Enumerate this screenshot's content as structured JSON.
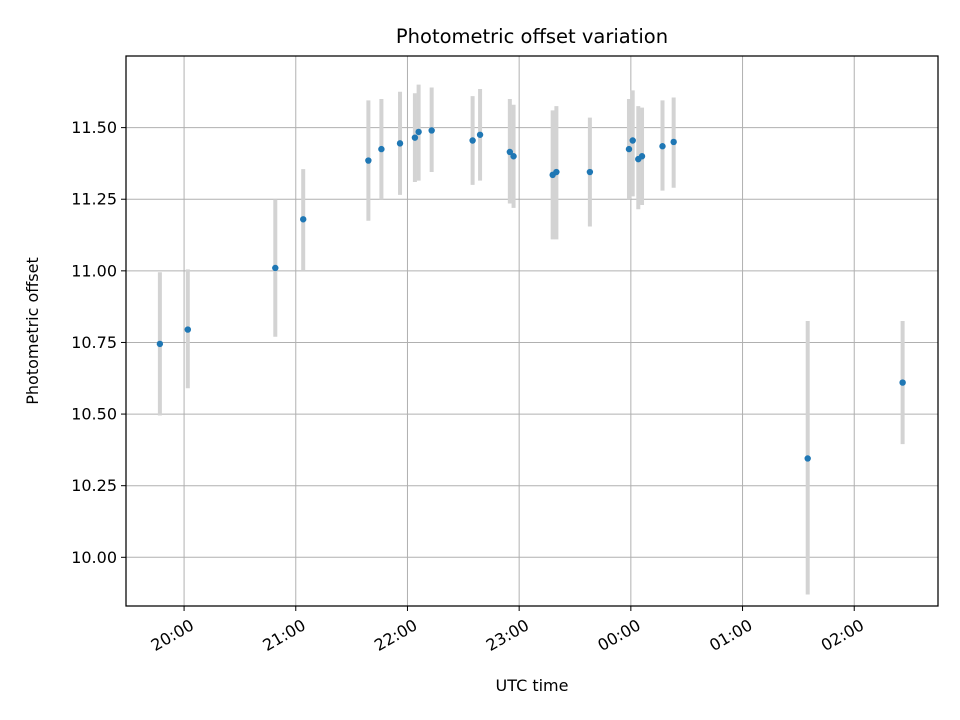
{
  "chart_data": {
    "type": "scatter",
    "title": "Photometric offset variation",
    "xlabel": "UTC time",
    "ylabel": "Photometric offset",
    "x_tick_labels": [
      "20:00",
      "21:00",
      "22:00",
      "23:00",
      "00:00",
      "01:00",
      "02:00"
    ],
    "y_tick_labels": [
      "10.00",
      "10.25",
      "10.50",
      "10.75",
      "11.00",
      "11.25",
      "11.50"
    ],
    "y_ticks": [
      10.0,
      10.25,
      10.5,
      10.75,
      11.0,
      11.25,
      11.5
    ],
    "x_ticks_hours": [
      20,
      21,
      22,
      23,
      24,
      25,
      26
    ],
    "xlim_hours": [
      19.48,
      26.75
    ],
    "ylim": [
      9.83,
      11.75
    ],
    "grid": true,
    "series": [
      {
        "marker_color": "#1f77b4",
        "errorbar_color": "#d3d3d3",
        "points": [
          {
            "time": "19:47",
            "y": 10.745,
            "ylow": 10.495,
            "yhigh": 10.995
          },
          {
            "time": "20:02",
            "y": 10.795,
            "ylow": 10.59,
            "yhigh": 11.005
          },
          {
            "time": "20:49",
            "y": 11.01,
            "ylow": 10.77,
            "yhigh": 11.25
          },
          {
            "time": "21:04",
            "y": 11.18,
            "ylow": 11.0,
            "yhigh": 11.355
          },
          {
            "time": "21:39",
            "y": 11.385,
            "ylow": 11.175,
            "yhigh": 11.595
          },
          {
            "time": "21:46",
            "y": 11.425,
            "ylow": 11.25,
            "yhigh": 11.6
          },
          {
            "time": "21:56",
            "y": 11.445,
            "ylow": 11.265,
            "yhigh": 11.625
          },
          {
            "time": "22:04",
            "y": 11.465,
            "ylow": 11.31,
            "yhigh": 11.62
          },
          {
            "time": "22:06",
            "y": 11.485,
            "ylow": 11.315,
            "yhigh": 11.65
          },
          {
            "time": "22:13",
            "y": 11.49,
            "ylow": 11.345,
            "yhigh": 11.64
          },
          {
            "time": "22:35",
            "y": 11.455,
            "ylow": 11.3,
            "yhigh": 11.61
          },
          {
            "time": "22:39",
            "y": 11.475,
            "ylow": 11.315,
            "yhigh": 11.635
          },
          {
            "time": "22:55",
            "y": 11.415,
            "ylow": 11.235,
            "yhigh": 11.6
          },
          {
            "time": "22:57",
            "y": 11.4,
            "ylow": 11.22,
            "yhigh": 11.58
          },
          {
            "time": "23:18",
            "y": 11.335,
            "ylow": 11.11,
            "yhigh": 11.56
          },
          {
            "time": "23:20",
            "y": 11.345,
            "ylow": 11.11,
            "yhigh": 11.575
          },
          {
            "time": "23:38",
            "y": 11.345,
            "ylow": 11.155,
            "yhigh": 11.535
          },
          {
            "time": "23:59",
            "y": 11.425,
            "ylow": 11.25,
            "yhigh": 11.6
          },
          {
            "time": "00:01",
            "y": 11.455,
            "ylow": 11.26,
            "yhigh": 11.63
          },
          {
            "time": "00:04",
            "y": 11.39,
            "ylow": 11.215,
            "yhigh": 11.575
          },
          {
            "time": "00:06",
            "y": 11.4,
            "ylow": 11.23,
            "yhigh": 11.57
          },
          {
            "time": "00:17",
            "y": 11.435,
            "ylow": 11.28,
            "yhigh": 11.595
          },
          {
            "time": "00:23",
            "y": 11.45,
            "ylow": 11.29,
            "yhigh": 11.605
          },
          {
            "time": "01:35",
            "y": 10.345,
            "ylow": 9.87,
            "yhigh": 10.825
          },
          {
            "time": "02:26",
            "y": 10.61,
            "ylow": 10.395,
            "yhigh": 10.825
          }
        ]
      }
    ]
  }
}
